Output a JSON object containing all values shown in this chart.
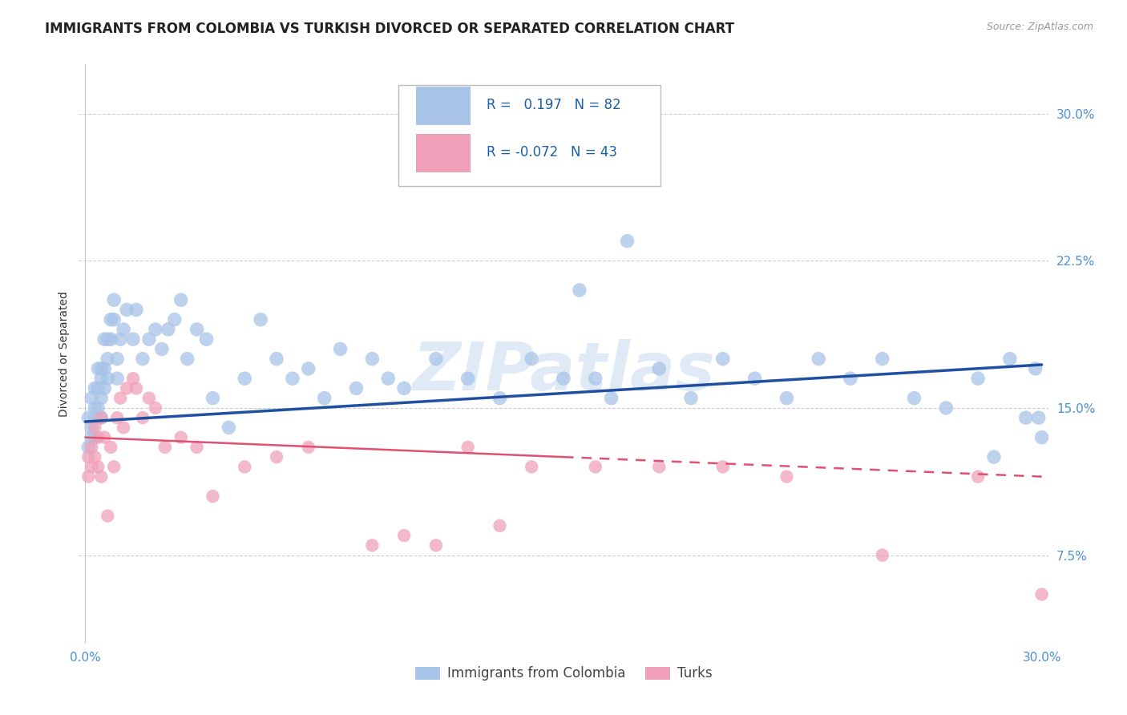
{
  "title": "IMMIGRANTS FROM COLOMBIA VS TURKISH DIVORCED OR SEPARATED CORRELATION CHART",
  "source": "Source: ZipAtlas.com",
  "ylabel": "Divorced or Separated",
  "legend_labels": [
    "Immigrants from Colombia",
    "Turks"
  ],
  "series_blue": {
    "label": "Immigrants from Colombia",
    "R": 0.197,
    "N": 82,
    "color": "#a8c4e8",
    "line_color": "#1f4fa0",
    "x": [
      0.001,
      0.001,
      0.002,
      0.002,
      0.002,
      0.003,
      0.003,
      0.003,
      0.003,
      0.004,
      0.004,
      0.004,
      0.005,
      0.005,
      0.005,
      0.005,
      0.006,
      0.006,
      0.006,
      0.007,
      0.007,
      0.007,
      0.008,
      0.008,
      0.009,
      0.009,
      0.01,
      0.01,
      0.011,
      0.012,
      0.013,
      0.015,
      0.016,
      0.018,
      0.02,
      0.022,
      0.024,
      0.026,
      0.028,
      0.03,
      0.032,
      0.035,
      0.038,
      0.04,
      0.045,
      0.05,
      0.055,
      0.06,
      0.065,
      0.07,
      0.075,
      0.08,
      0.085,
      0.09,
      0.095,
      0.1,
      0.11,
      0.12,
      0.13,
      0.14,
      0.15,
      0.155,
      0.16,
      0.165,
      0.17,
      0.18,
      0.19,
      0.2,
      0.21,
      0.22,
      0.23,
      0.24,
      0.25,
      0.26,
      0.27,
      0.28,
      0.285,
      0.29,
      0.295,
      0.298,
      0.299,
      0.3
    ],
    "y": [
      0.145,
      0.13,
      0.155,
      0.14,
      0.135,
      0.16,
      0.15,
      0.145,
      0.135,
      0.17,
      0.16,
      0.15,
      0.17,
      0.165,
      0.155,
      0.145,
      0.185,
      0.17,
      0.16,
      0.185,
      0.175,
      0.165,
      0.195,
      0.185,
      0.205,
      0.195,
      0.175,
      0.165,
      0.185,
      0.19,
      0.2,
      0.185,
      0.2,
      0.175,
      0.185,
      0.19,
      0.18,
      0.19,
      0.195,
      0.205,
      0.175,
      0.19,
      0.185,
      0.155,
      0.14,
      0.165,
      0.195,
      0.175,
      0.165,
      0.17,
      0.155,
      0.18,
      0.16,
      0.175,
      0.165,
      0.16,
      0.175,
      0.165,
      0.155,
      0.175,
      0.165,
      0.21,
      0.165,
      0.155,
      0.235,
      0.17,
      0.155,
      0.175,
      0.165,
      0.155,
      0.175,
      0.165,
      0.175,
      0.155,
      0.15,
      0.165,
      0.125,
      0.175,
      0.145,
      0.17,
      0.145,
      0.135
    ]
  },
  "series_pink": {
    "label": "Turks",
    "R": -0.072,
    "N": 43,
    "color": "#f0a0b8",
    "line_color": "#e05070",
    "x": [
      0.001,
      0.001,
      0.002,
      0.002,
      0.003,
      0.003,
      0.004,
      0.004,
      0.005,
      0.005,
      0.006,
      0.007,
      0.008,
      0.009,
      0.01,
      0.011,
      0.012,
      0.013,
      0.015,
      0.016,
      0.018,
      0.02,
      0.022,
      0.025,
      0.03,
      0.035,
      0.04,
      0.05,
      0.06,
      0.07,
      0.09,
      0.1,
      0.11,
      0.12,
      0.13,
      0.14,
      0.16,
      0.18,
      0.2,
      0.22,
      0.25,
      0.28,
      0.3
    ],
    "y": [
      0.125,
      0.115,
      0.13,
      0.12,
      0.14,
      0.125,
      0.135,
      0.12,
      0.145,
      0.115,
      0.135,
      0.095,
      0.13,
      0.12,
      0.145,
      0.155,
      0.14,
      0.16,
      0.165,
      0.16,
      0.145,
      0.155,
      0.15,
      0.13,
      0.135,
      0.13,
      0.105,
      0.12,
      0.125,
      0.13,
      0.08,
      0.085,
      0.08,
      0.13,
      0.09,
      0.12,
      0.12,
      0.12,
      0.12,
      0.115,
      0.075,
      0.115,
      0.055
    ]
  },
  "blue_line_x": [
    0.0,
    0.3
  ],
  "blue_line_y": [
    0.143,
    0.172
  ],
  "pink_line_x": [
    0.0,
    0.3
  ],
  "pink_line_y": [
    0.135,
    0.115
  ],
  "xlim": [
    -0.002,
    0.302
  ],
  "ylim": [
    0.03,
    0.325
  ],
  "yticks": [
    0.075,
    0.15,
    0.225,
    0.3
  ],
  "ytick_labels": [
    "7.5%",
    "15.0%",
    "22.5%",
    "30.0%"
  ],
  "xticks": [
    0.0,
    0.1,
    0.2,
    0.3
  ],
  "xtick_labels": [
    "0.0%",
    "",
    "",
    "30.0%"
  ],
  "background_color": "#ffffff",
  "grid_color": "#c8c8c8",
  "watermark": "ZIPatlas",
  "title_fontsize": 12,
  "axis_label_fontsize": 10,
  "tick_fontsize": 11,
  "tick_color": "#4a90d9"
}
